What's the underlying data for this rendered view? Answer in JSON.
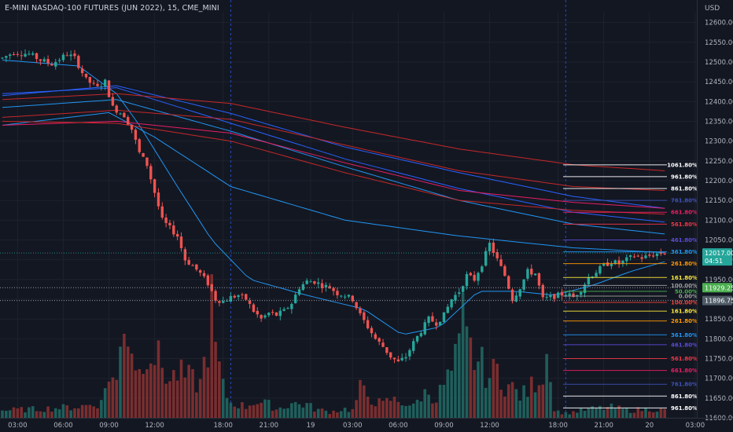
{
  "title": "E-MINI NASDAQ-100 FUTURES (JUN 2022), 15, CME_MINI",
  "currency": "USD",
  "colors": {
    "background": "#131722",
    "grid": "#1e222d",
    "up": "#26a69a",
    "down": "#ef5350",
    "up_volume": "#1f5f5b",
    "down_volume": "#7a2e2f",
    "ma_blue": "#2962ff",
    "ma_light_blue": "#2196f3",
    "ma_red": "#c62828",
    "ma_pink": "#e91e63",
    "current_tag": "#26a69a",
    "current_line": "#26a69a",
    "level_green_tag": "#4caf50",
    "level_gray_tag": "#4f5b66"
  },
  "price_tags": {
    "current": {
      "price": "12017.00",
      "countdown": "04:51"
    },
    "level_a": {
      "price": "11929.25"
    },
    "level_b": {
      "price": "11896.75"
    }
  },
  "chart_data": {
    "type": "candlestick",
    "y_range": [
      11600,
      12625
    ],
    "y_ticks": [
      12600,
      12550,
      12500,
      12450,
      12400,
      12350,
      12300,
      12250,
      12200,
      12150,
      12100,
      12050,
      12000,
      11950,
      11900,
      11850,
      11800,
      11750,
      11700,
      11650,
      11600
    ],
    "y_tick_labels": [
      "12600.00",
      "12550.00",
      "12500.00",
      "12450.00",
      "12400.00",
      "12350.00",
      "12300.00",
      "12250.00",
      "12200.00",
      "12150.00",
      "12100.00",
      "12050.00",
      "12000.00",
      "11950.00",
      "11900.00",
      "11850.00",
      "11800.00",
      "11750.00",
      "11700.00",
      "11650.00",
      "11600.00"
    ],
    "x_ticks": [
      {
        "label": "03:00",
        "bar": 4
      },
      {
        "label": "06:00",
        "bar": 16
      },
      {
        "label": "09:00",
        "bar": 28
      },
      {
        "label": "12:00",
        "bar": 40
      },
      {
        "label": "18:00",
        "bar": 58
      },
      {
        "label": "21:00",
        "bar": 70
      },
      {
        "label": "19",
        "bar": 81
      },
      {
        "label": "03:00",
        "bar": 92
      },
      {
        "label": "06:00",
        "bar": 104
      },
      {
        "label": "09:00",
        "bar": 116
      },
      {
        "label": "12:00",
        "bar": 128
      },
      {
        "label": "18:00",
        "bar": 146
      },
      {
        "label": "21:00",
        "bar": 158
      },
      {
        "label": "20",
        "bar": 170
      },
      {
        "label": "03:00",
        "bar": 182
      }
    ],
    "session_separators": [
      60,
      148
    ],
    "anchor_points": [
      [
        0,
        12510
      ],
      [
        3,
        12525
      ],
      [
        7,
        12520
      ],
      [
        10,
        12505
      ],
      [
        13,
        12495
      ],
      [
        17,
        12520
      ],
      [
        19,
        12510
      ],
      [
        22,
        12455
      ],
      [
        25,
        12435
      ],
      [
        27,
        12450
      ],
      [
        29,
        12385
      ],
      [
        32,
        12365
      ],
      [
        34,
        12330
      ],
      [
        36,
        12270
      ],
      [
        38,
        12240
      ],
      [
        40,
        12170
      ],
      [
        42,
        12100
      ],
      [
        44,
        12080
      ],
      [
        46,
        12060
      ],
      [
        48,
        12000
      ],
      [
        50,
        11985
      ],
      [
        52,
        11965
      ],
      [
        54,
        11940
      ],
      [
        56,
        11900
      ],
      [
        58,
        11895
      ],
      [
        60,
        11905
      ],
      [
        62,
        11910
      ],
      [
        64,
        11900
      ],
      [
        66,
        11870
      ],
      [
        68,
        11850
      ],
      [
        70,
        11865
      ],
      [
        72,
        11860
      ],
      [
        74,
        11870
      ],
      [
        76,
        11890
      ],
      [
        78,
        11930
      ],
      [
        80,
        11945
      ],
      [
        82,
        11945
      ],
      [
        84,
        11935
      ],
      [
        86,
        11930
      ],
      [
        88,
        11915
      ],
      [
        90,
        11910
      ],
      [
        92,
        11900
      ],
      [
        94,
        11860
      ],
      [
        96,
        11830
      ],
      [
        98,
        11800
      ],
      [
        100,
        11780
      ],
      [
        102,
        11755
      ],
      [
        104,
        11740
      ],
      [
        106,
        11755
      ],
      [
        108,
        11790
      ],
      [
        110,
        11820
      ],
      [
        112,
        11850
      ],
      [
        114,
        11840
      ],
      [
        116,
        11860
      ],
      [
        118,
        11900
      ],
      [
        120,
        11920
      ],
      [
        122,
        11960
      ],
      [
        124,
        11950
      ],
      [
        126,
        11990
      ],
      [
        128,
        12040
      ],
      [
        130,
        12000
      ],
      [
        132,
        11960
      ],
      [
        134,
        11900
      ],
      [
        136,
        11930
      ],
      [
        138,
        11970
      ],
      [
        140,
        11965
      ],
      [
        142,
        11900
      ],
      [
        144,
        11905
      ],
      [
        146,
        11910
      ],
      [
        148,
        11915
      ],
      [
        150,
        11905
      ],
      [
        152,
        11925
      ],
      [
        154,
        11955
      ],
      [
        156,
        11970
      ],
      [
        158,
        11985
      ],
      [
        160,
        11995
      ],
      [
        162,
        11990
      ],
      [
        164,
        12000
      ],
      [
        166,
        12010
      ],
      [
        168,
        12005
      ],
      [
        170,
        12010
      ],
      [
        172,
        12015
      ],
      [
        174,
        12017
      ]
    ],
    "volume_anchors": [
      [
        0,
        10
      ],
      [
        10,
        12
      ],
      [
        20,
        15
      ],
      [
        26,
        20
      ],
      [
        28,
        60
      ],
      [
        30,
        45
      ],
      [
        32,
        140
      ],
      [
        34,
        95
      ],
      [
        36,
        60
      ],
      [
        38,
        100
      ],
      [
        40,
        85
      ],
      [
        42,
        70
      ],
      [
        44,
        50
      ],
      [
        46,
        60
      ],
      [
        48,
        55
      ],
      [
        50,
        50
      ],
      [
        52,
        45
      ],
      [
        54,
        100
      ],
      [
        55,
        150
      ],
      [
        56,
        90
      ],
      [
        58,
        40
      ],
      [
        60,
        20
      ],
      [
        62,
        18
      ],
      [
        64,
        15
      ],
      [
        66,
        22
      ],
      [
        68,
        20
      ],
      [
        70,
        18
      ],
      [
        72,
        12
      ],
      [
        74,
        15
      ],
      [
        76,
        20
      ],
      [
        78,
        18
      ],
      [
        80,
        18
      ],
      [
        82,
        12
      ],
      [
        84,
        10
      ],
      [
        86,
        8
      ],
      [
        88,
        10
      ],
      [
        90,
        12
      ],
      [
        92,
        10
      ],
      [
        94,
        38
      ],
      [
        96,
        30
      ],
      [
        98,
        22
      ],
      [
        100,
        18
      ],
      [
        102,
        25
      ],
      [
        104,
        22
      ],
      [
        106,
        20
      ],
      [
        108,
        15
      ],
      [
        110,
        30
      ],
      [
        112,
        35
      ],
      [
        114,
        25
      ],
      [
        116,
        45
      ],
      [
        118,
        60
      ],
      [
        120,
        90
      ],
      [
        121,
        130
      ],
      [
        122,
        100
      ],
      [
        124,
        80
      ],
      [
        126,
        70
      ],
      [
        128,
        55
      ],
      [
        130,
        65
      ],
      [
        132,
        45
      ],
      [
        134,
        40
      ],
      [
        136,
        30
      ],
      [
        138,
        35
      ],
      [
        140,
        50
      ],
      [
        142,
        60
      ],
      [
        143,
        85
      ],
      [
        144,
        75
      ],
      [
        145,
        10
      ],
      [
        148,
        6
      ],
      [
        150,
        8
      ],
      [
        155,
        12
      ],
      [
        160,
        14
      ],
      [
        165,
        10
      ],
      [
        170,
        12
      ],
      [
        174,
        10
      ]
    ],
    "moving_averages": [
      {
        "color": "#2962ff",
        "points": [
          [
            0,
            12415
          ],
          [
            30,
            12440
          ],
          [
            60,
            12370
          ],
          [
            90,
            12285
          ],
          [
            120,
            12220
          ],
          [
            150,
            12160
          ],
          [
            174,
            12130
          ]
        ]
      },
      {
        "color": "#2962ff",
        "points": [
          [
            0,
            12420
          ],
          [
            30,
            12435
          ],
          [
            60,
            12345
          ],
          [
            90,
            12255
          ],
          [
            120,
            12180
          ],
          [
            150,
            12120
          ],
          [
            174,
            12095
          ]
        ]
      },
      {
        "color": "#2196f3",
        "points": [
          [
            0,
            12385
          ],
          [
            30,
            12405
          ],
          [
            60,
            12325
          ],
          [
            90,
            12235
          ],
          [
            120,
            12150
          ],
          [
            150,
            12090
          ],
          [
            174,
            12065
          ]
        ]
      },
      {
        "color": "#2196f3",
        "points": [
          [
            0,
            12340
          ],
          [
            28,
            12372
          ],
          [
            40,
            12310
          ],
          [
            60,
            12185
          ],
          [
            90,
            12100
          ],
          [
            120,
            12060
          ],
          [
            150,
            12030
          ],
          [
            174,
            12018
          ]
        ]
      },
      {
        "color": "#2196f3",
        "points": [
          [
            0,
            12505
          ],
          [
            20,
            12490
          ],
          [
            30,
            12420
          ],
          [
            36,
            12340
          ],
          [
            45,
            12200
          ],
          [
            55,
            12050
          ],
          [
            65,
            11950
          ],
          [
            80,
            11910
          ],
          [
            95,
            11875
          ],
          [
            105,
            11810
          ],
          [
            115,
            11830
          ],
          [
            125,
            11920
          ],
          [
            135,
            11920
          ],
          [
            145,
            11910
          ],
          [
            155,
            11935
          ],
          [
            165,
            11970
          ],
          [
            174,
            11995
          ]
        ]
      },
      {
        "color": "#c62828",
        "points": [
          [
            0,
            12405
          ],
          [
            30,
            12420
          ],
          [
            60,
            12395
          ],
          [
            90,
            12335
          ],
          [
            120,
            12280
          ],
          [
            150,
            12240
          ],
          [
            174,
            12225
          ]
        ]
      },
      {
        "color": "#c62828",
        "points": [
          [
            0,
            12360
          ],
          [
            30,
            12378
          ],
          [
            60,
            12355
          ],
          [
            90,
            12290
          ],
          [
            120,
            12225
          ],
          [
            150,
            12185
          ],
          [
            174,
            12175
          ]
        ]
      },
      {
        "color": "#e91e63",
        "points": [
          [
            0,
            12340
          ],
          [
            30,
            12350
          ],
          [
            60,
            12320
          ],
          [
            90,
            12245
          ],
          [
            120,
            12175
          ],
          [
            150,
            12145
          ],
          [
            174,
            12130
          ]
        ]
      },
      {
        "color": "#c62828",
        "points": [
          [
            0,
            12350
          ],
          [
            30,
            12345
          ],
          [
            60,
            12300
          ],
          [
            90,
            12220
          ],
          [
            120,
            12150
          ],
          [
            150,
            12125
          ],
          [
            174,
            12115
          ]
        ]
      }
    ],
    "fib_levels": [
      {
        "label": "1061.80%",
        "price": 12240,
        "color": "#ffffff"
      },
      {
        "label": "961.80%",
        "price": 12210,
        "color": "#ffffff"
      },
      {
        "label": "861.80%",
        "price": 12180,
        "color": "#ffffff"
      },
      {
        "label": "761.80%",
        "price": 12150,
        "color": "#3f51b5"
      },
      {
        "label": "661.80%",
        "price": 12120,
        "color": "#e91e63"
      },
      {
        "label": "561.80%",
        "price": 12090,
        "color": "#f23645"
      },
      {
        "label": "461.80%",
        "price": 12050,
        "color": "#5b4bd6"
      },
      {
        "label": "361.80%",
        "price": 12020,
        "color": "#2196f3"
      },
      {
        "label": "261.80%",
        "price": 11990,
        "color": "#ff9800"
      },
      {
        "label": "161.80%",
        "price": 11955,
        "color": "#ffeb3b"
      },
      {
        "label": "100.00%",
        "price": 11935,
        "color": "#9e9e9e"
      },
      {
        "label": "50.00%",
        "price": 11920,
        "color": "#4caf50"
      },
      {
        "label": "0.00%",
        "price": 11908,
        "color": "#9e9e9e"
      },
      {
        "label": "100.00%",
        "price": 11892,
        "color": "#f44336"
      },
      {
        "label": "161.80%",
        "price": 11870,
        "color": "#ffeb3b"
      },
      {
        "label": "261.80%",
        "price": 11845,
        "color": "#ff9800"
      },
      {
        "label": "361.80%",
        "price": 11810,
        "color": "#2196f3"
      },
      {
        "label": "461.80%",
        "price": 11785,
        "color": "#5b4bd6"
      },
      {
        "label": "561.80%",
        "price": 11750,
        "color": "#f23645"
      },
      {
        "label": "661.80%",
        "price": 11720,
        "color": "#e91e63"
      },
      {
        "label": "761.80%",
        "price": 11685,
        "color": "#3f51b5"
      },
      {
        "label": "861.80%",
        "price": 11655,
        "color": "#ffffff"
      },
      {
        "label": "961.80%",
        "price": 11625,
        "color": "#ffffff"
      }
    ],
    "bar_count": 175,
    "current_price": 12017
  }
}
